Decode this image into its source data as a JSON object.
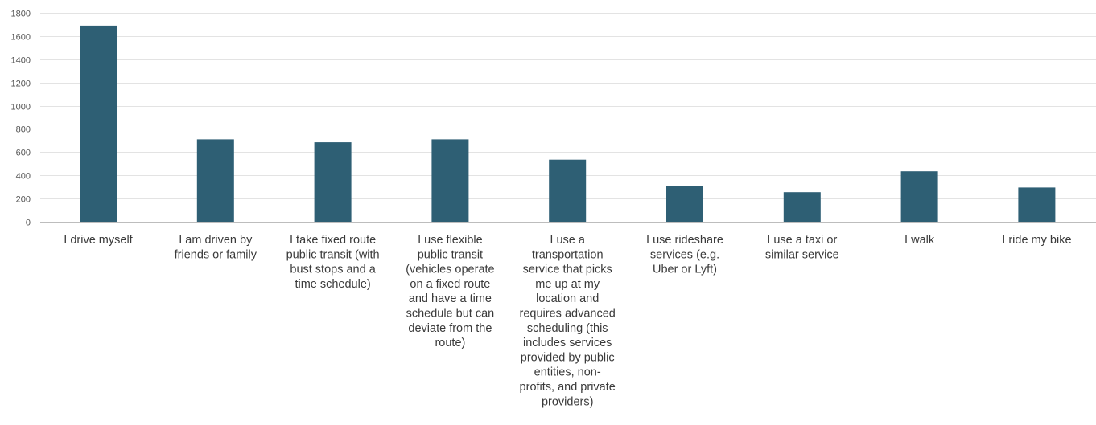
{
  "chart_data": {
    "type": "bar",
    "categories": [
      [
        "I drive myself"
      ],
      [
        "I am driven by",
        "friends or family"
      ],
      [
        "I take fixed route",
        "public transit (with",
        "bust stops and a",
        "time schedule)"
      ],
      [
        "I use flexible",
        "public transit",
        "(vehicles operate",
        "on a fixed route",
        "and have a time",
        "schedule but can",
        "deviate from the",
        "route)"
      ],
      [
        "I use a",
        "transportation",
        "service that picks",
        "me up at my",
        "location and",
        "requires advanced",
        "scheduling (this",
        "includes services",
        "provided by public",
        "entities, non-",
        "profits, and private",
        "providers)"
      ],
      [
        "I use rideshare",
        "services (e.g.",
        "Uber or Lyft)"
      ],
      [
        "I use a taxi or",
        "similar service"
      ],
      [
        "I walk"
      ],
      [
        "I ride my bike"
      ]
    ],
    "values": [
      1690,
      710,
      685,
      710,
      535,
      310,
      255,
      435,
      295
    ],
    "title": "",
    "xlabel": "",
    "ylabel": "",
    "ylim": [
      0,
      1800
    ],
    "yticks": [
      "0",
      "200",
      "400",
      "600",
      "800",
      "1000",
      "1200",
      "1400",
      "1600",
      "1800"
    ],
    "grid": true,
    "legend": "none",
    "bar_color": "#2e5f74"
  }
}
